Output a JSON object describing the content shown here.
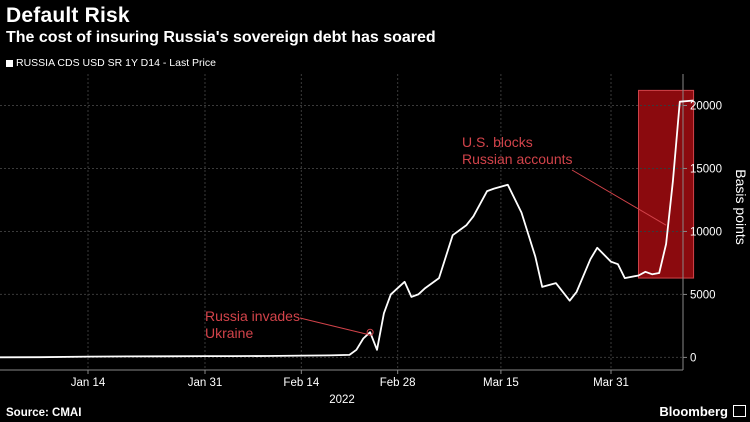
{
  "header": {
    "title": "Default Risk",
    "subtitle": "The cost of insuring Russia's sovereign debt has soared"
  },
  "legend": {
    "label": "RUSSIA CDS USD SR 1Y D14 - Last Price"
  },
  "footer": {
    "source": "Source: CMAI",
    "brand": "Bloomberg"
  },
  "colors": {
    "background": "#000000",
    "line": "#ffffff",
    "grid": "#3a3a3a",
    "annotation": "#d2434a",
    "highlight": "#8b0a0e"
  },
  "chart_data": {
    "type": "line",
    "title": "",
    "xlabel": "2022",
    "ylabel": "Basis points",
    "ylim": [
      -1000,
      22500
    ],
    "xlim": [
      "2022-01-01",
      "2022-04-09"
    ],
    "yticks": [
      0,
      5000,
      10000,
      15000,
      20000
    ],
    "xticks": [
      {
        "date": "2022-01-14",
        "label": "Jan 14"
      },
      {
        "date": "2022-01-31",
        "label": "Jan 31"
      },
      {
        "date": "2022-02-14",
        "label": "Feb 14"
      },
      {
        "date": "2022-02-28",
        "label": "Feb 28"
      },
      {
        "date": "2022-03-15",
        "label": "Mar 15"
      },
      {
        "date": "2022-03-31",
        "label": "Mar 31"
      }
    ],
    "grid": true,
    "series": [
      {
        "name": "RUSSIA CDS USD SR 1Y D14 - Last Price",
        "points": [
          [
            "2022-01-01",
            10
          ],
          [
            "2022-01-07",
            20
          ],
          [
            "2022-01-14",
            60
          ],
          [
            "2022-01-20",
            80
          ],
          [
            "2022-01-25",
            90
          ],
          [
            "2022-01-31",
            100
          ],
          [
            "2022-02-04",
            100
          ],
          [
            "2022-02-09",
            110
          ],
          [
            "2022-02-14",
            140
          ],
          [
            "2022-02-18",
            160
          ],
          [
            "2022-02-21",
            200
          ],
          [
            "2022-02-22",
            600
          ],
          [
            "2022-02-23",
            1500
          ],
          [
            "2022-02-24",
            2000
          ],
          [
            "2022-02-25",
            600
          ],
          [
            "2022-02-26",
            3500
          ],
          [
            "2022-02-27",
            5000
          ],
          [
            "2022-02-28",
            5500
          ],
          [
            "2022-03-01",
            6000
          ],
          [
            "2022-03-02",
            4800
          ],
          [
            "2022-03-03",
            5000
          ],
          [
            "2022-03-04",
            5500
          ],
          [
            "2022-03-06",
            6300
          ],
          [
            "2022-03-08",
            9700
          ],
          [
            "2022-03-10",
            10500
          ],
          [
            "2022-03-11",
            11200
          ],
          [
            "2022-03-13",
            13200
          ],
          [
            "2022-03-14",
            13400
          ],
          [
            "2022-03-16",
            13700
          ],
          [
            "2022-03-18",
            11500
          ],
          [
            "2022-03-20",
            8000
          ],
          [
            "2022-03-21",
            5600
          ],
          [
            "2022-03-23",
            5900
          ],
          [
            "2022-03-25",
            4500
          ],
          [
            "2022-03-26",
            5200
          ],
          [
            "2022-03-28",
            7800
          ],
          [
            "2022-03-29",
            8700
          ],
          [
            "2022-03-31",
            7600
          ],
          [
            "2022-04-01",
            7400
          ],
          [
            "2022-04-02",
            6300
          ],
          [
            "2022-04-04",
            6500
          ],
          [
            "2022-04-05",
            6800
          ],
          [
            "2022-04-06",
            6600
          ],
          [
            "2022-04-07",
            6700
          ],
          [
            "2022-04-08",
            9000
          ],
          [
            "2022-04-09",
            14000
          ],
          [
            "2022-04-10",
            20300
          ],
          [
            "2022-04-12",
            20400
          ]
        ]
      }
    ],
    "annotations": [
      {
        "text_lines": [
          "Russia invades",
          "Ukraine"
        ],
        "date": "2022-02-24",
        "value": 2000
      },
      {
        "text_lines": [
          "U.S. blocks",
          "Russian accounts"
        ],
        "date": "2022-04-08",
        "value": 10500
      }
    ],
    "highlight": {
      "from": "2022-04-04",
      "to": "2022-04-12",
      "ymin": 6300,
      "ymax": 21200
    }
  }
}
